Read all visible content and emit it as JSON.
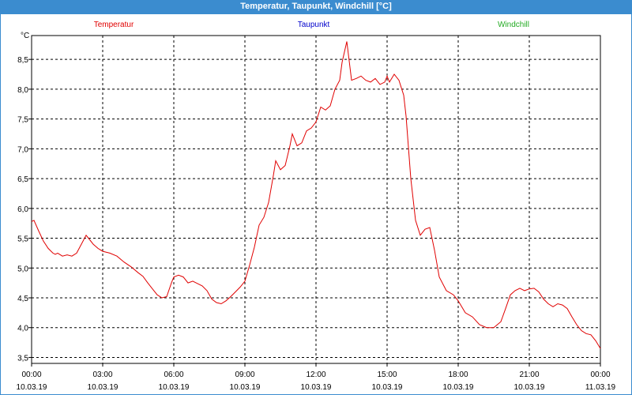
{
  "window": {
    "title": "Temperatur, Taupunkt, Windchill [°C]"
  },
  "colors": {
    "titlebar": "#3b8ccf",
    "grid": "#000000",
    "temperatur": "#e00000",
    "taupunkt": "#0000cc",
    "windchill": "#22aa22"
  },
  "chart_data": {
    "type": "line",
    "title": "Temperatur, Taupunkt, Windchill [°C]",
    "ylabel": "°C",
    "ylim": [
      3.4,
      8.9
    ],
    "xlim": [
      0,
      24
    ],
    "grid": true,
    "legend_placement": "top",
    "legend": [
      "Temperatur",
      "Taupunkt",
      "Windchill"
    ],
    "yticks": [
      "3,5",
      "4,0",
      "4,5",
      "5,0",
      "5,5",
      "6,0",
      "6,5",
      "7,0",
      "7,5",
      "8,0",
      "8,5"
    ],
    "xticks": [
      {
        "time": "00:00",
        "date": "10.03.19"
      },
      {
        "time": "03:00",
        "date": "10.03.19"
      },
      {
        "time": "06:00",
        "date": "10.03.19"
      },
      {
        "time": "09:00",
        "date": "10.03.19"
      },
      {
        "time": "12:00",
        "date": "10.03.19"
      },
      {
        "time": "15:00",
        "date": "10.03.19"
      },
      {
        "time": "18:00",
        "date": "10.03.19"
      },
      {
        "time": "21:00",
        "date": "10.03.19"
      },
      {
        "time": "00:00",
        "date": "11.03.19"
      }
    ],
    "series": [
      {
        "name": "Temperatur",
        "x": [
          0.0,
          0.1,
          0.3,
          0.5,
          0.7,
          0.9,
          1.0,
          1.1,
          1.3,
          1.5,
          1.7,
          1.9,
          2.1,
          2.3,
          2.4,
          2.6,
          2.8,
          3.0,
          3.3,
          3.6,
          3.9,
          4.2,
          4.5,
          4.7,
          4.9,
          5.1,
          5.3,
          5.5,
          5.7,
          5.9,
          6.0,
          6.2,
          6.4,
          6.6,
          6.8,
          6.9,
          7.0,
          7.2,
          7.4,
          7.6,
          7.8,
          8.0,
          8.2,
          8.4,
          8.6,
          8.8,
          9.0,
          9.2,
          9.4,
          9.6,
          9.8,
          10.0,
          10.2,
          10.3,
          10.5,
          10.7,
          10.9,
          11.0,
          11.2,
          11.4,
          11.6,
          11.8,
          12.0,
          12.2,
          12.4,
          12.6,
          12.8,
          13.0,
          13.1,
          13.3,
          13.5,
          13.7,
          13.9,
          14.1,
          14.3,
          14.5,
          14.7,
          14.9,
          15.0,
          15.1,
          15.3,
          15.5,
          15.7,
          15.8,
          16.0,
          16.2,
          16.4,
          16.6,
          16.8,
          17.0,
          17.2,
          17.5,
          17.8,
          18.0,
          18.3,
          18.6,
          18.9,
          19.2,
          19.5,
          19.8,
          20.0,
          20.2,
          20.4,
          20.6,
          20.8,
          21.0,
          21.2,
          21.4,
          21.6,
          21.8,
          22.0,
          22.2,
          22.4,
          22.6,
          22.8,
          23.0,
          23.2,
          23.4,
          23.6,
          23.8,
          24.0
        ],
        "values": [
          5.78,
          5.8,
          5.62,
          5.45,
          5.33,
          5.25,
          5.23,
          5.25,
          5.2,
          5.22,
          5.2,
          5.25,
          5.4,
          5.55,
          5.5,
          5.4,
          5.33,
          5.28,
          5.25,
          5.2,
          5.1,
          5.02,
          4.92,
          4.86,
          4.75,
          4.65,
          4.55,
          4.5,
          4.52,
          4.75,
          4.85,
          4.88,
          4.85,
          4.75,
          4.78,
          4.76,
          4.74,
          4.7,
          4.62,
          4.48,
          4.42,
          4.4,
          4.45,
          4.52,
          4.6,
          4.68,
          4.78,
          5.05,
          5.35,
          5.72,
          5.85,
          6.1,
          6.55,
          6.8,
          6.65,
          6.72,
          7.05,
          7.25,
          7.05,
          7.1,
          7.3,
          7.35,
          7.45,
          7.7,
          7.65,
          7.72,
          8.0,
          8.15,
          8.45,
          8.8,
          8.15,
          8.18,
          8.22,
          8.15,
          8.12,
          8.18,
          8.08,
          8.12,
          8.22,
          8.12,
          8.25,
          8.15,
          7.9,
          7.55,
          6.5,
          5.8,
          5.55,
          5.65,
          5.68,
          5.3,
          4.85,
          4.62,
          4.55,
          4.45,
          4.25,
          4.18,
          4.05,
          4.0,
          4.0,
          4.1,
          4.32,
          4.55,
          4.62,
          4.66,
          4.62,
          4.65,
          4.66,
          4.6,
          4.48,
          4.4,
          4.35,
          4.4,
          4.38,
          4.32,
          4.18,
          4.05,
          3.95,
          3.9,
          3.88,
          3.78,
          3.65
        ]
      }
    ]
  }
}
